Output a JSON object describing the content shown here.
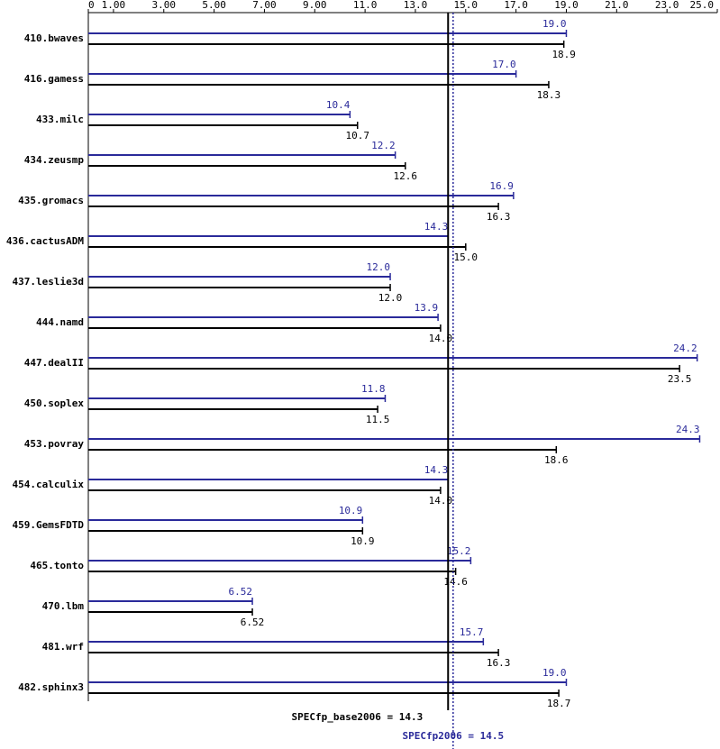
{
  "chart_data": {
    "type": "bar",
    "orientation": "horizontal",
    "categories": [
      "410.bwaves",
      "416.gamess",
      "433.milc",
      "434.zeusmp",
      "435.gromacs",
      "436.cactusADM",
      "437.leslie3d",
      "444.namd",
      "447.dealII",
      "450.soplex",
      "453.povray",
      "454.calculix",
      "459.GemsFDTD",
      "465.tonto",
      "470.lbm",
      "481.wrf",
      "482.sphinx3"
    ],
    "series": [
      {
        "color": "#2a2a9a",
        "values": [
          19.0,
          17.0,
          10.4,
          12.2,
          16.9,
          14.3,
          12.0,
          13.9,
          24.2,
          11.8,
          24.3,
          14.3,
          10.9,
          15.2,
          6.52,
          15.7,
          19.0
        ],
        "value_labels": [
          "19.0",
          "17.0",
          "10.4",
          "12.2",
          "16.9",
          "14.3",
          "12.0",
          "13.9",
          "24.2",
          "11.8",
          "24.3",
          "14.3",
          "10.9",
          "15.2",
          "6.52",
          "15.7",
          "19.0"
        ]
      },
      {
        "color": "#000000",
        "values": [
          18.9,
          18.3,
          10.7,
          12.6,
          16.3,
          15.0,
          12.0,
          14.0,
          23.5,
          11.5,
          18.6,
          14.0,
          10.9,
          14.6,
          6.52,
          16.3,
          18.7
        ],
        "value_labels": [
          "18.9",
          "18.3",
          "10.7",
          "12.6",
          "16.3",
          "15.0",
          "12.0",
          "14.0",
          "23.5",
          "11.5",
          "18.6",
          "14.0",
          "10.9",
          "14.6",
          "6.52",
          "16.3",
          "18.7"
        ]
      }
    ],
    "xlim": [
      0,
      25
    ],
    "xticks": [
      0,
      {
        "value": 1,
        "label": "1.00"
      },
      {
        "value": 3,
        "label": "3.00"
      },
      {
        "value": 5,
        "label": "5.00"
      },
      {
        "value": 7,
        "label": "7.00"
      },
      {
        "value": 9,
        "label": "9.00"
      },
      {
        "value": 11,
        "label": "11.0"
      },
      {
        "value": 13,
        "label": "13.0"
      },
      {
        "value": 15,
        "label": "15.0"
      },
      {
        "value": 17,
        "label": "17.0"
      },
      {
        "value": 19,
        "label": "19.0"
      },
      {
        "value": 21,
        "label": "21.0"
      },
      {
        "value": 23,
        "label": "23.0"
      },
      {
        "value": 25,
        "label": "25.0"
      }
    ],
    "reference_lines": [
      {
        "label": "SPECfp_base2006 = 14.3",
        "value": 14.3,
        "color": "#000000",
        "dashed": false
      },
      {
        "label": "SPECfp2006 = 14.5",
        "value": 14.5,
        "color": "#2a2a9a",
        "dashed": true
      }
    ]
  }
}
